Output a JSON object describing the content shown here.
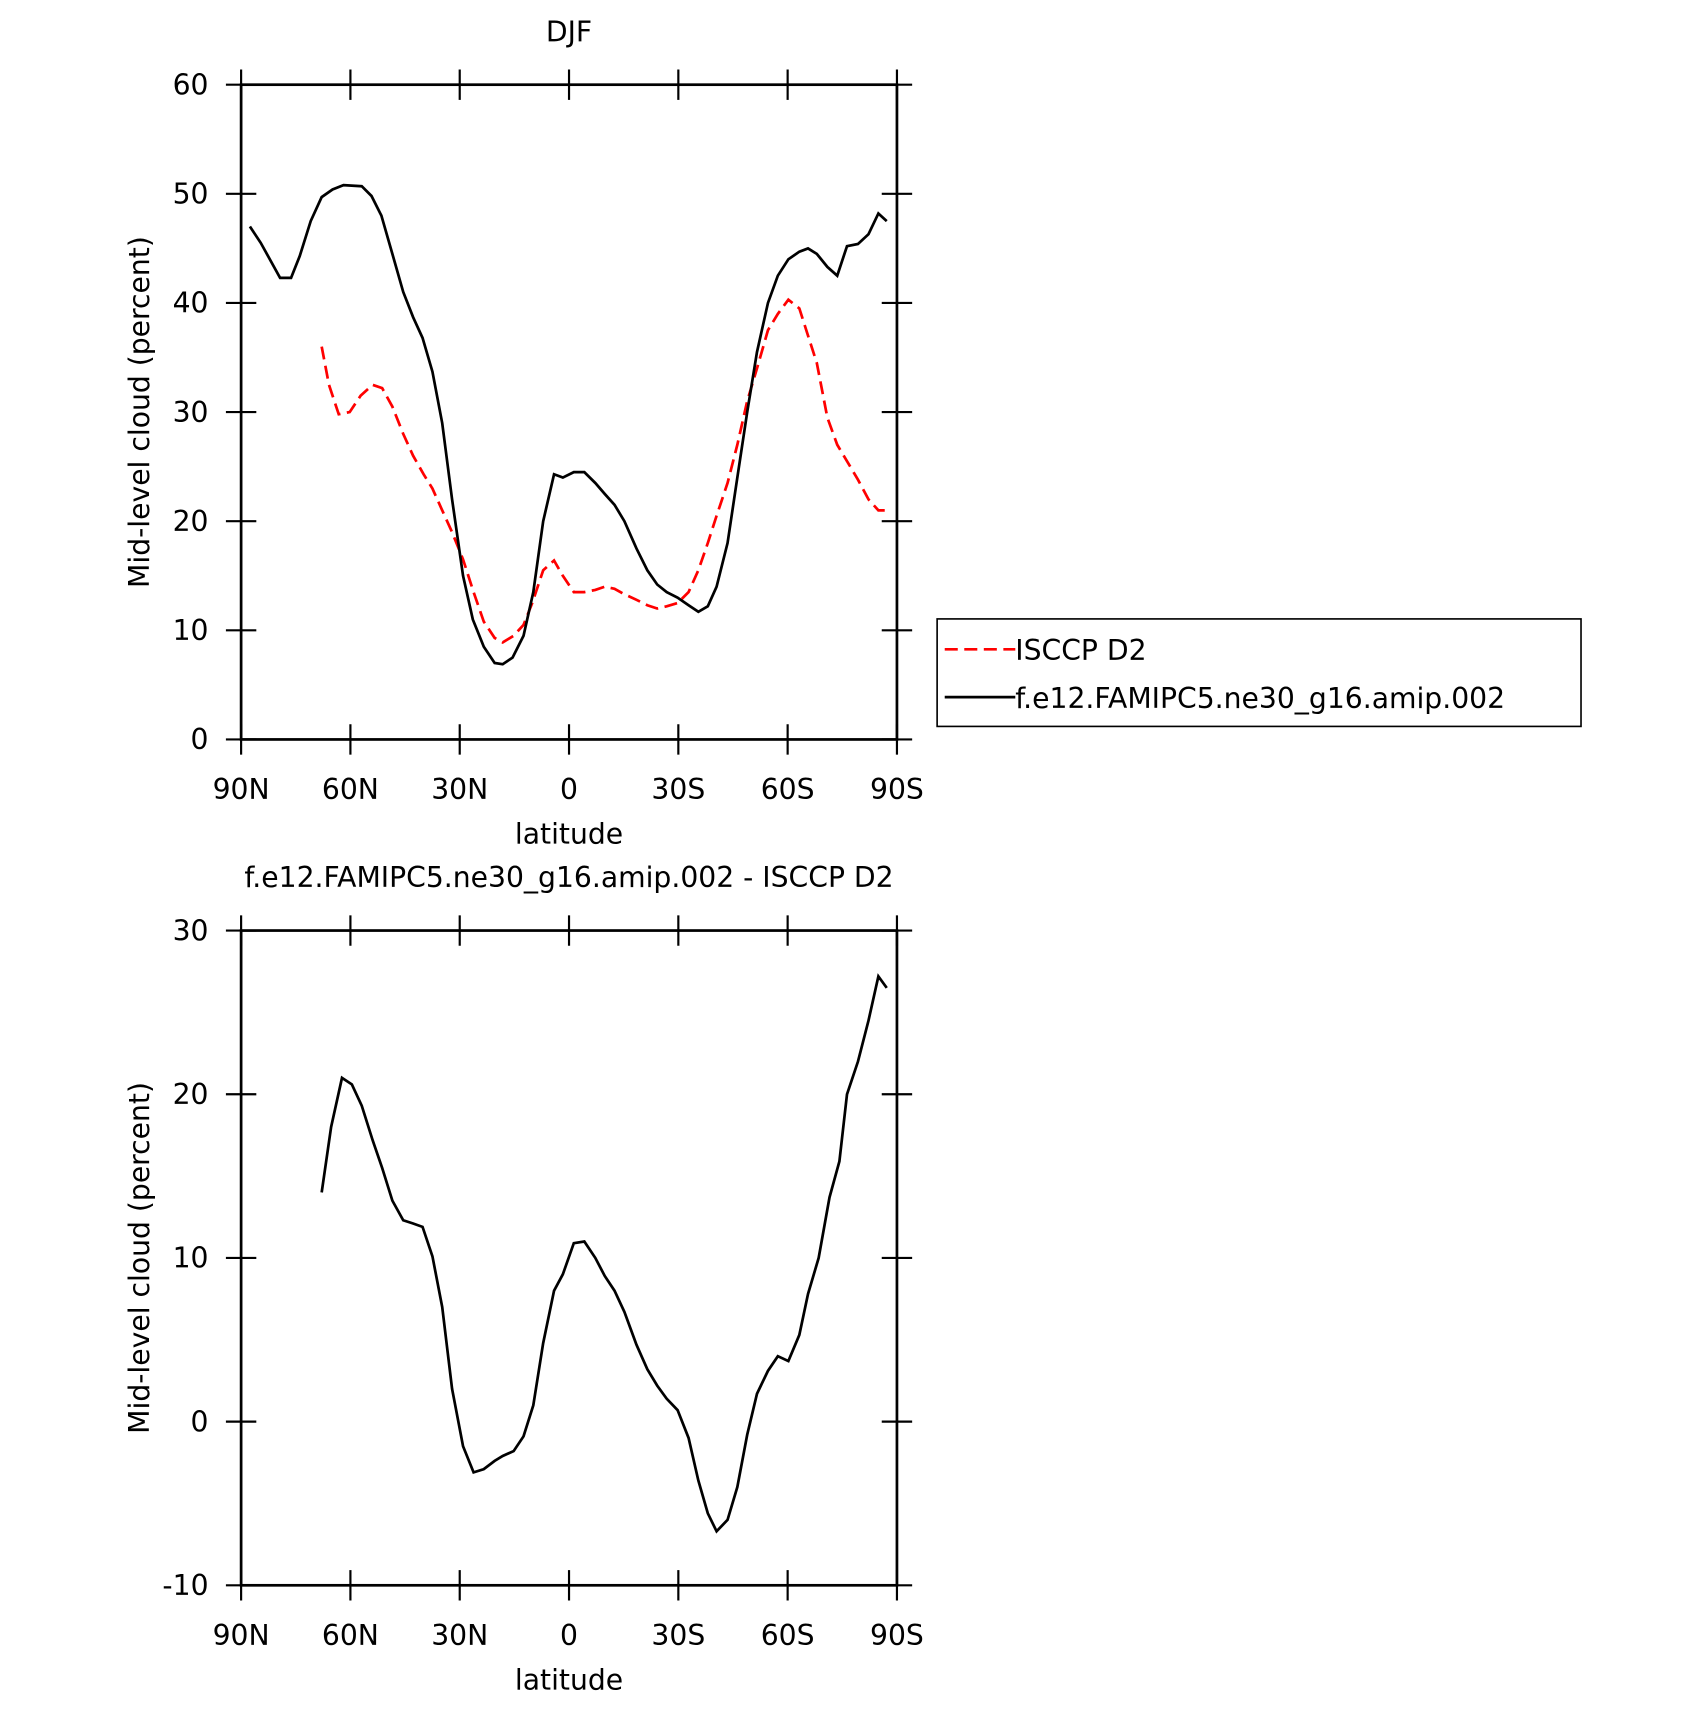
{
  "chart_data": [
    {
      "type": "line",
      "title": "DJF",
      "xlabel": "latitude",
      "ylabel": "Mid-level cloud (percent)",
      "xlim": [
        90,
        -90
      ],
      "xticks": [
        {
          "value": 90,
          "label": "90N"
        },
        {
          "value": 60,
          "label": "60N"
        },
        {
          "value": 30,
          "label": "30N"
        },
        0,
        {
          "value": -30,
          "label": "30S"
        },
        {
          "value": -60,
          "label": "60S"
        },
        {
          "value": -90,
          "label": "90S"
        }
      ],
      "ylim": [
        0,
        60
      ],
      "yticks": [
        0,
        10,
        20,
        30,
        40,
        50,
        60
      ],
      "legend": "right",
      "series": [
        {
          "name": "ISCCP D2",
          "color": "#ff0000",
          "dash": true,
          "x": [
            67.9,
            65.9,
            63.2,
            60.2,
            57.2,
            53.9,
            51.3,
            48.5,
            45.5,
            42.8,
            39.9,
            37.5,
            34.8,
            32.1,
            29.1,
            26.2,
            23.4,
            20.4,
            18.2,
            15.2,
            12.5,
            10.1,
            7.1,
            4.1,
            1.7,
            -1.3,
            -4.2,
            -7.2,
            -9.8,
            -12.5,
            -15.2,
            -18.5,
            -21.5,
            -24.2,
            -26.8,
            -29.8,
            -32.8,
            -35.5,
            -38.1,
            -40.5,
            -43.5,
            -46.2,
            -48.9,
            -51.6,
            -54.6,
            -57.3,
            -60.2,
            -63.2,
            -65.6,
            -68.0,
            -70.9,
            -73.6,
            -76.3,
            -79.3,
            -82.2,
            -84.9,
            -87.2
          ],
          "values": [
            36,
            32.5,
            29.8,
            30,
            31.5,
            32.5,
            32.2,
            30.5,
            28,
            26,
            24.3,
            23,
            21,
            19,
            16.5,
            13.5,
            10.8,
            9.3,
            8.9,
            9.5,
            10.5,
            12.5,
            15.5,
            16.4,
            15,
            13.5,
            13.5,
            13.7,
            14,
            13.8,
            13.3,
            12.8,
            12.3,
            12,
            12.2,
            12.5,
            13.5,
            15.5,
            18,
            20.5,
            23.5,
            27,
            31,
            34,
            37.5,
            39,
            40.3,
            39.5,
            37,
            34.5,
            29.5,
            27,
            25.5,
            23.8,
            22,
            21,
            21
          ]
        },
        {
          "name": "f.e12.FAMIPC5.ne30_g16.amip.002",
          "color": "#000000",
          "x": [
            87.6,
            84.6,
            79.3,
            76.3,
            73.9,
            70.9,
            67.9,
            64.9,
            61.9,
            56.9,
            54.2,
            51.5,
            48.5,
            45.5,
            42.8,
            40.2,
            37.5,
            34.8,
            32.1,
            29.1,
            26.4,
            23.4,
            20.4,
            18.2,
            15.5,
            12.5,
            9.8,
            7.1,
            4.1,
            1.7,
            -1.3,
            -4.2,
            -7.2,
            -9.8,
            -12.5,
            -15.2,
            -18.5,
            -21.5,
            -24.2,
            -26.8,
            -29.8,
            -32.8,
            -35.5,
            -38.1,
            -40.5,
            -43.5,
            -46.2,
            -48.9,
            -51.6,
            -54.6,
            -57.3,
            -60.2,
            -63.2,
            -65.6,
            -68.0,
            -70.9,
            -73.6,
            -76.3,
            -79.3,
            -82.2,
            -84.9,
            -87.2
          ],
          "values": [
            47,
            45.5,
            42.3,
            42.3,
            44.3,
            47.5,
            49.7,
            50.4,
            50.8,
            50.7,
            49.8,
            48,
            44.5,
            41,
            38.7,
            36.8,
            33.7,
            29,
            22,
            15,
            11,
            8.5,
            7,
            6.9,
            7.5,
            9.5,
            13.5,
            20,
            24.3,
            24,
            24.5,
            24.5,
            23.5,
            22.5,
            21.5,
            20,
            17.5,
            15.5,
            14.2,
            13.5,
            13,
            12.3,
            11.7,
            12.2,
            14,
            18,
            24,
            30,
            35.5,
            40,
            42.5,
            44,
            44.7,
            45,
            44.5,
            43.3,
            42.5,
            45.2,
            45.4,
            46.3,
            48.2,
            47.5
          ]
        }
      ]
    },
    {
      "type": "line",
      "title": "f.e12.FAMIPC5.ne30_g16.amip.002 - ISCCP D2",
      "xlabel": "latitude",
      "ylabel": "Mid-level cloud (percent)",
      "xlim": [
        90,
        -90
      ],
      "xticks": [
        {
          "value": 90,
          "label": "90N"
        },
        {
          "value": 60,
          "label": "60N"
        },
        {
          "value": 30,
          "label": "30N"
        },
        0,
        {
          "value": -30,
          "label": "30S"
        },
        {
          "value": -60,
          "label": "60S"
        },
        {
          "value": -90,
          "label": "90S"
        }
      ],
      "ylim": [
        -10,
        30
      ],
      "yticks": [
        -10,
        0,
        10,
        20,
        30
      ],
      "series": [
        {
          "color": "#000000",
          "x": [
            67.9,
            65.3,
            62.3,
            59.6,
            56.9,
            53.9,
            51.3,
            48.5,
            45.5,
            42.8,
            40.2,
            37.5,
            34.8,
            32.1,
            29.1,
            26.2,
            23.4,
            20.4,
            18.2,
            15.2,
            12.5,
            9.8,
            7.1,
            4.1,
            1.7,
            -1.3,
            -4.2,
            -7.2,
            -9.8,
            -12.5,
            -15.2,
            -18.5,
            -21.5,
            -24.2,
            -26.8,
            -29.8,
            -32.8,
            -35.5,
            -38.1,
            -40.5,
            -43.5,
            -46.2,
            -48.9,
            -51.6,
            -54.6,
            -57.3,
            -60.2,
            -63.2,
            -65.6,
            -68.5,
            -71.5,
            -74.2,
            -76.3,
            -79.3,
            -82.2,
            -84.9,
            -87.2
          ],
          "values": [
            14,
            18,
            21,
            20.6,
            19.3,
            17.2,
            15.5,
            13.5,
            12.3,
            12.1,
            11.9,
            10.1,
            7,
            2,
            -1.5,
            -3.1,
            -2.9,
            -2.4,
            -2.1,
            -1.8,
            -0.9,
            1,
            4.8,
            8,
            9,
            10.9,
            11,
            10,
            8.9,
            8,
            6.7,
            4.7,
            3.2,
            2.2,
            1.4,
            0.7,
            -1,
            -3.6,
            -5.6,
            -6.7,
            -6,
            -4,
            -0.8,
            1.7,
            3.1,
            4,
            3.7,
            5.3,
            7.8,
            10,
            13.7,
            15.9,
            20,
            22,
            24.5,
            27.2,
            26.5
          ]
        }
      ]
    }
  ]
}
